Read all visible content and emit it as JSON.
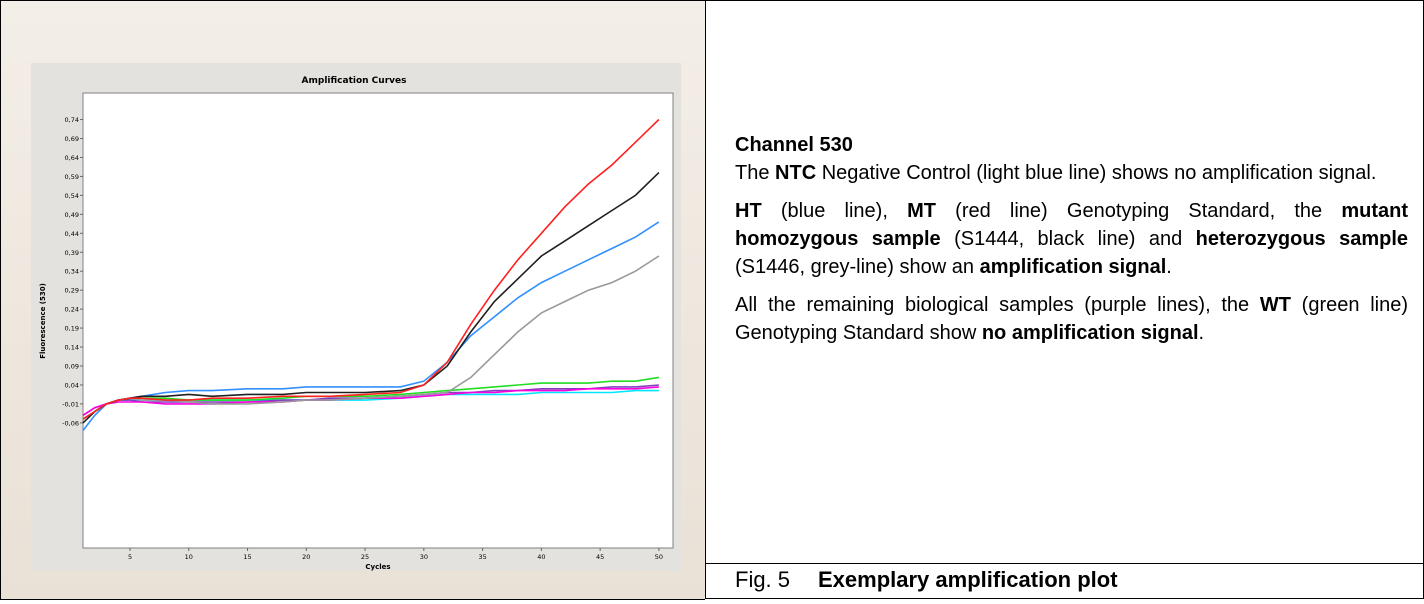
{
  "chart_data": {
    "type": "line",
    "title": "Amplification Curves",
    "xlabel": "Cycles",
    "ylabel": "Fluorescence (530)",
    "x": [
      1,
      2,
      3,
      4,
      5,
      6,
      8,
      10,
      12,
      15,
      18,
      20,
      22,
      25,
      28,
      30,
      32,
      34,
      36,
      38,
      40,
      42,
      44,
      46,
      48,
      50
    ],
    "xlim": [
      1,
      51.2
    ],
    "ylim": [
      -0.39,
      0.81
    ],
    "xticks": [
      5,
      10,
      15,
      20,
      25,
      30,
      35,
      40,
      45,
      50
    ],
    "yticks": [
      {
        "value": 0.74,
        "label": "0,74"
      },
      {
        "value": 0.69,
        "label": "0,69"
      },
      {
        "value": 0.64,
        "label": "0,64"
      },
      {
        "value": 0.59,
        "label": "0,59"
      },
      {
        "value": 0.54,
        "label": "0,54"
      },
      {
        "value": 0.49,
        "label": "0,49"
      },
      {
        "value": 0.44,
        "label": "0,44"
      },
      {
        "value": 0.39,
        "label": "0,39"
      },
      {
        "value": 0.34,
        "label": "0,34"
      },
      {
        "value": 0.29,
        "label": "0,29"
      },
      {
        "value": 0.24,
        "label": "0,24"
      },
      {
        "value": 0.19,
        "label": "0,19"
      },
      {
        "value": 0.14,
        "label": "0,14"
      },
      {
        "value": 0.09,
        "label": "0,09"
      },
      {
        "value": 0.04,
        "label": "0,04"
      },
      {
        "value": -0.01,
        "label": "-0,01"
      },
      {
        "value": -0.06,
        "label": "-0,06"
      }
    ],
    "series": [
      {
        "color": "#00e6ff",
        "values": [
          -0.05,
          -0.03,
          -0.01,
          0.0,
          0.0,
          0.0,
          0.0,
          0.0,
          0.0,
          0.0,
          0.0,
          0.0,
          0.0,
          0.0,
          0.005,
          0.01,
          0.015,
          0.015,
          0.015,
          0.015,
          0.02,
          0.02,
          0.02,
          0.02,
          0.025,
          0.025
        ]
      },
      {
        "color": "#8040c0",
        "values": [
          -0.04,
          -0.02,
          -0.01,
          0.0,
          0.0,
          -0.005,
          -0.005,
          -0.005,
          -0.005,
          -0.005,
          0.0,
          0.0,
          0.005,
          0.005,
          0.01,
          0.015,
          0.02,
          0.02,
          0.025,
          0.025,
          0.03,
          0.03,
          0.03,
          0.035,
          0.035,
          0.04
        ]
      },
      {
        "color": "#ff00e0",
        "values": [
          -0.04,
          -0.02,
          -0.01,
          -0.005,
          -0.005,
          -0.005,
          -0.01,
          -0.01,
          -0.01,
          -0.005,
          -0.005,
          0.0,
          0.0,
          0.005,
          0.005,
          0.01,
          0.015,
          0.02,
          0.02,
          0.025,
          0.025,
          0.025,
          0.03,
          0.03,
          0.03,
          0.035
        ]
      },
      {
        "color": "#22dd22",
        "values": [
          -0.05,
          -0.03,
          -0.01,
          0.0,
          0.005,
          0.005,
          0.005,
          0.0,
          0.0,
          0.0,
          0.005,
          0.01,
          0.01,
          0.01,
          0.015,
          0.02,
          0.025,
          0.03,
          0.035,
          0.04,
          0.045,
          0.045,
          0.045,
          0.05,
          0.05,
          0.06
        ]
      },
      {
        "color": "#999999",
        "values": [
          -0.05,
          -0.03,
          -0.01,
          0.0,
          0.005,
          0.0,
          0.0,
          -0.005,
          -0.01,
          -0.01,
          -0.005,
          0.0,
          0.0,
          0.005,
          0.01,
          0.015,
          0.02,
          0.06,
          0.12,
          0.18,
          0.23,
          0.26,
          0.29,
          0.31,
          0.34,
          0.38
        ]
      },
      {
        "color": "#3090ff",
        "values": [
          -0.08,
          -0.04,
          -0.01,
          0.0,
          0.005,
          0.01,
          0.02,
          0.025,
          0.025,
          0.03,
          0.03,
          0.035,
          0.035,
          0.035,
          0.035,
          0.05,
          0.1,
          0.17,
          0.22,
          0.27,
          0.31,
          0.34,
          0.37,
          0.4,
          0.43,
          0.47
        ]
      },
      {
        "color": "#202020",
        "values": [
          -0.06,
          -0.03,
          -0.01,
          0.0,
          0.005,
          0.01,
          0.01,
          0.015,
          0.01,
          0.015,
          0.015,
          0.02,
          0.02,
          0.02,
          0.025,
          0.04,
          0.09,
          0.18,
          0.26,
          0.32,
          0.38,
          0.42,
          0.46,
          0.5,
          0.54,
          0.6
        ]
      },
      {
        "color": "#ff2020",
        "values": [
          -0.05,
          -0.03,
          -0.01,
          0.0,
          0.005,
          0.005,
          0.0,
          0.0,
          0.005,
          0.005,
          0.01,
          0.01,
          0.01,
          0.015,
          0.02,
          0.04,
          0.1,
          0.2,
          0.29,
          0.37,
          0.44,
          0.51,
          0.57,
          0.62,
          0.68,
          0.74
        ]
      }
    ]
  },
  "text": {
    "heading": "Channel 530",
    "paragraphs": [
      [
        {
          "text": "The ",
          "bold": false
        },
        {
          "text": "NTC",
          "bold": true
        },
        {
          "text": " Negative Control (light blue line) shows no amplification signal.",
          "bold": false
        }
      ],
      [
        {
          "text": "HT",
          "bold": true
        },
        {
          "text": " (blue line), ",
          "bold": false
        },
        {
          "text": "MT",
          "bold": true
        },
        {
          "text": " (red line) Genotyping Standard, the ",
          "bold": false
        },
        {
          "text": "mutant homozygous sample",
          "bold": true
        },
        {
          "text": " (S1444, black line) and ",
          "bold": false
        },
        {
          "text": "heterozygous sample",
          "bold": true
        },
        {
          "text": " (S1446, grey-line) show an ",
          "bold": false
        },
        {
          "text": "amplification signal",
          "bold": true
        },
        {
          "text": ".",
          "bold": false
        }
      ],
      [
        {
          "text": "All the remaining biological samples (purple lines), the ",
          "bold": false
        },
        {
          "text": "WT",
          "bold": true
        },
        {
          "text": " (green line) Genotyping Standard show ",
          "bold": false
        },
        {
          "text": "no amplification signal",
          "bold": true
        },
        {
          "text": ".",
          "bold": false
        }
      ]
    ]
  },
  "caption": {
    "label": "Fig. 5",
    "title": "Exemplary amplification plot"
  }
}
